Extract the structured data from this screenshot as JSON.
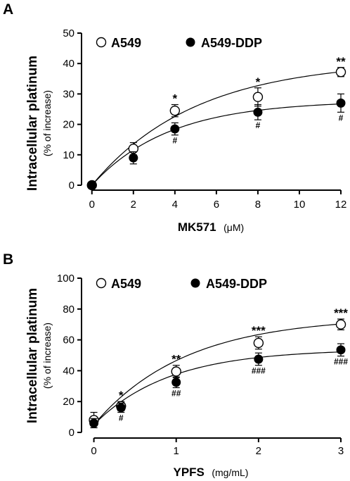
{
  "chart_data": [
    {
      "type": "scatter",
      "panel": "A",
      "ylabel": "Intracellular platinum",
      "ylabel_sub": "(% of increase)",
      "xlabel": "MK571",
      "xunit": "(μM)",
      "xlim": [
        -0.5,
        12
      ],
      "ylim": [
        0,
        50
      ],
      "xticks": [
        0,
        2,
        4,
        6,
        8,
        10,
        12
      ],
      "yticks": [
        0,
        10,
        20,
        30,
        40,
        50
      ],
      "legend_placement": "top",
      "series": [
        {
          "name": "A549",
          "marker": "open-circle",
          "x": [
            0,
            2,
            4,
            8,
            12
          ],
          "y": [
            0,
            12,
            24.5,
            29,
            37.2
          ],
          "err": [
            0.5,
            2,
            2,
            3,
            1.5
          ],
          "fit": {
            "max": 41,
            "k": 0.2
          },
          "sig": [
            "",
            "",
            "*",
            "*",
            "**"
          ]
        },
        {
          "name": "A549-DDP",
          "marker": "filled-circle",
          "x": [
            0,
            2,
            4,
            8,
            12
          ],
          "y": [
            0,
            9,
            18.5,
            24,
            27
          ],
          "err": [
            0.5,
            2,
            2,
            2.5,
            3
          ],
          "fit": {
            "max": 27.8,
            "k": 0.27
          },
          "sig": [
            "",
            "",
            "#",
            "#",
            "#"
          ]
        }
      ]
    },
    {
      "type": "scatter",
      "panel": "B",
      "ylabel": "Intracellular platinum",
      "ylabel_sub": "(% of increase)",
      "xlabel": "YPFS",
      "xunit": "(mg/mL)",
      "xlim": [
        -0.15,
        3
      ],
      "ylim": [
        0,
        100
      ],
      "xticks": [
        0,
        1,
        2,
        3
      ],
      "yticks": [
        0,
        20,
        40,
        60,
        80,
        100
      ],
      "legend_placement": "top",
      "series": [
        {
          "name": "A549",
          "marker": "open-circle",
          "x": [
            0,
            0.33,
            1,
            2,
            3
          ],
          "y": [
            8,
            17,
            39.5,
            58,
            70
          ],
          "err": [
            5,
            3,
            4,
            4,
            3.5
          ],
          "fit": {
            "max": 75,
            "k": 0.9,
            "y0": 5
          },
          "sig": [
            "",
            "*",
            "**",
            "***",
            "***"
          ]
        },
        {
          "name": "A549-DDP",
          "marker": "filled-circle",
          "x": [
            0,
            0.33,
            1,
            2,
            3
          ],
          "y": [
            6,
            16,
            32.5,
            47.5,
            53.5
          ],
          "err": [
            3,
            3,
            3.5,
            4,
            4
          ],
          "fit": {
            "max": 54,
            "k": 1.1,
            "y0": 5
          },
          "sig": [
            "",
            "#",
            "##",
            "###",
            "###"
          ]
        }
      ]
    }
  ]
}
